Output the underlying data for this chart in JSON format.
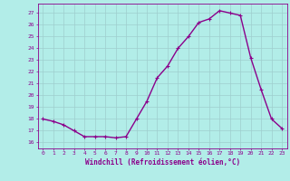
{
  "x": [
    0,
    1,
    2,
    3,
    4,
    5,
    6,
    7,
    8,
    9,
    10,
    11,
    12,
    13,
    14,
    15,
    16,
    17,
    18,
    19,
    20,
    21,
    22,
    23
  ],
  "y": [
    18.0,
    17.8,
    17.5,
    17.0,
    16.5,
    16.5,
    16.5,
    16.4,
    16.5,
    18.0,
    19.5,
    21.5,
    22.5,
    24.0,
    25.0,
    26.2,
    26.5,
    27.2,
    27.0,
    26.8,
    23.2,
    20.5,
    18.0,
    17.2
  ],
  "line_color": "#8B008B",
  "marker": "+",
  "marker_color": "#8B008B",
  "background_color": "#b2ede8",
  "grid_color": "#9ecece",
  "xlabel": "Windchill (Refroidissement éolien,°C)",
  "ylim": [
    15.5,
    27.8
  ],
  "xlim": [
    -0.5,
    23.5
  ],
  "yticks": [
    16,
    17,
    18,
    19,
    20,
    21,
    22,
    23,
    24,
    25,
    26,
    27
  ],
  "xticks": [
    0,
    1,
    2,
    3,
    4,
    5,
    6,
    7,
    8,
    9,
    10,
    11,
    12,
    13,
    14,
    15,
    16,
    17,
    18,
    19,
    20,
    21,
    22,
    23
  ],
  "xlabel_color": "#8B008B",
  "tick_color": "#8B008B",
  "linewidth": 1.0,
  "markersize": 3.5
}
